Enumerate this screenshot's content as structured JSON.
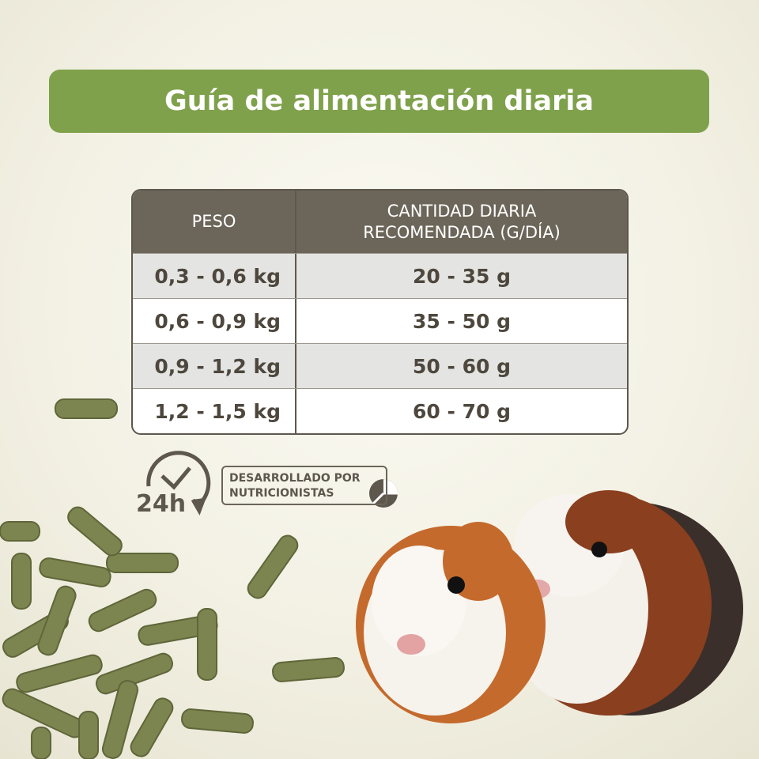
{
  "header": {
    "title": "Guía de alimentación diaria"
  },
  "table": {
    "headers": [
      [
        "PESO"
      ],
      [
        "CANTIDAD DIARIA",
        "RECOMENDADA (G/DÍA)"
      ]
    ],
    "rows": [
      [
        "0,3 - 0,6 kg",
        "20 - 35 g"
      ],
      [
        "0,6 - 0,9 kg",
        "35 - 50 g"
      ],
      [
        "0,9 - 1,2 kg",
        "50 - 60 g"
      ],
      [
        "1,2 - 1,5 kg",
        "60 - 70 g"
      ]
    ]
  },
  "icon": {
    "label": "24h"
  },
  "badge": {
    "lines": [
      "DESARROLLADO POR",
      "NUTRICIONISTAS"
    ]
  }
}
